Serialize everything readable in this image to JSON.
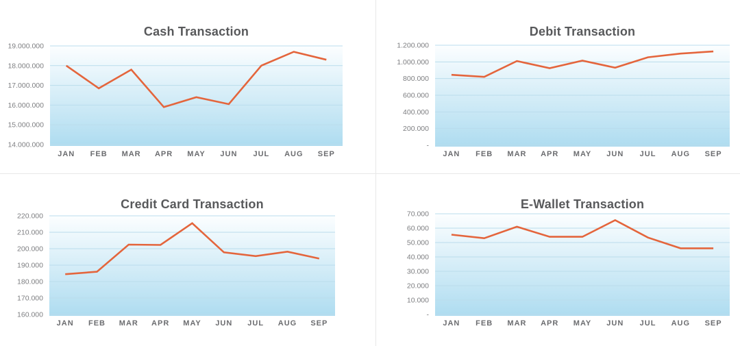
{
  "style": {
    "line_color": "#e4653c",
    "grid_color": "#badcec",
    "plot_gradient_top": "#fcfeff",
    "plot_gradient_bottom": "#aedcf0",
    "title_color": "#58595b",
    "y_label_color": "#7d7e81",
    "x_label_color": "#6b6c6f",
    "divider_color": "#e8e8e8",
    "background": "#ffffff"
  },
  "chart_data": [
    {
      "type": "line",
      "title": "Cash Transaction",
      "categories": [
        "JAN",
        "FEB",
        "MAR",
        "APR",
        "MAY",
        "JUN",
        "JUL",
        "AUG",
        "SEP"
      ],
      "values": [
        18000000,
        16850000,
        17800000,
        15900000,
        16400000,
        16050000,
        18000000,
        18700000,
        18300000
      ],
      "ylim": [
        14000000,
        19000000
      ],
      "ytick_labels": [
        "19.000.000",
        "18.000.000",
        "17.000.000",
        "16.000.000",
        "15.000.000",
        "14.000.000"
      ],
      "xlabel": "",
      "ylabel": "",
      "grid": true,
      "legend": "none"
    },
    {
      "type": "line",
      "title": "Debit Transaction",
      "categories": [
        "JAN",
        "FEB",
        "MAR",
        "APR",
        "MAY",
        "JUN",
        "JUL",
        "AUG",
        "SEP"
      ],
      "values": [
        845000,
        820000,
        1010000,
        925000,
        1015000,
        930000,
        1055000,
        1100000,
        1125000
      ],
      "ylim": [
        0,
        1200000
      ],
      "ytick_labels": [
        "1.200.000",
        "1.000.000",
        "800.000",
        "600.000",
        "400.000",
        "200.000",
        "-"
      ],
      "xlabel": "",
      "ylabel": "",
      "grid": true,
      "legend": "none"
    },
    {
      "type": "line",
      "title": "Credit Card Transaction",
      "categories": [
        "JAN",
        "FEB",
        "MAR",
        "APR",
        "MAY",
        "JUN",
        "JUL",
        "AUG",
        "SEP"
      ],
      "values": [
        184500,
        186000,
        202500,
        202300,
        215500,
        197800,
        195500,
        198200,
        194000
      ],
      "ylim": [
        160000,
        220000
      ],
      "ytick_labels": [
        "220.000",
        "210.000",
        "200.000",
        "190.000",
        "180.000",
        "170.000",
        "160.000"
      ],
      "xlabel": "",
      "ylabel": "",
      "grid": true,
      "legend": "none"
    },
    {
      "type": "line",
      "title": "E-Wallet Transaction",
      "categories": [
        "JAN",
        "FEB",
        "MAR",
        "APR",
        "MAY",
        "JUN",
        "JUL",
        "AUG",
        "SEP"
      ],
      "values": [
        55500,
        53000,
        61000,
        54000,
        54000,
        65500,
        53500,
        46000,
        46000
      ],
      "ylim": [
        0,
        70000
      ],
      "ytick_labels": [
        "70.000",
        "60.000",
        "50.000",
        "40.000",
        "30.000",
        "20.000",
        "10.000",
        "-"
      ],
      "xlabel": "",
      "ylabel": "",
      "grid": true,
      "legend": "none"
    }
  ]
}
